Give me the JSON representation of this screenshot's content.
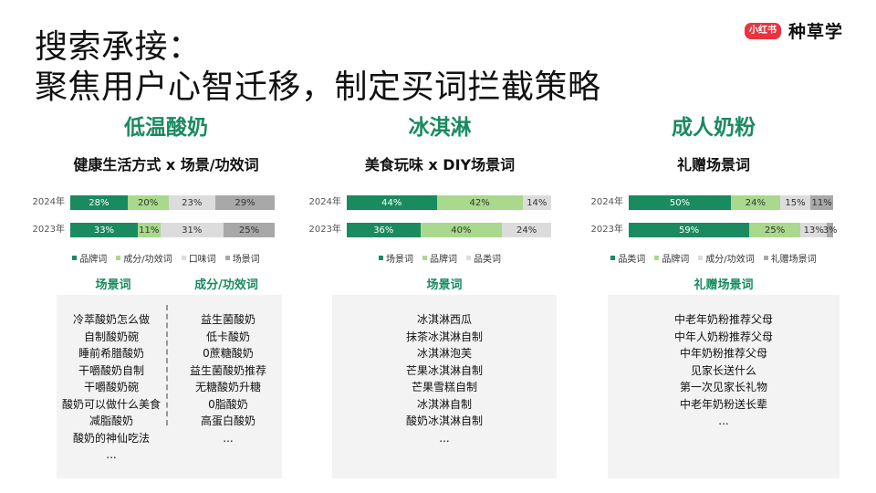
{
  "header": {
    "title_line1": "搜索承接：",
    "title_line2": "聚焦用户心智迁移，制定买词拦截策略",
    "logo_badge": "小红书",
    "logo_text": "种草学"
  },
  "colors": {
    "dark_green": "#1a8a5f",
    "light_green": "#a9d98c",
    "light_gray": "#dcdcdc",
    "mid_gray": "#a8a8a8"
  },
  "chart_data": [
    {
      "type": "bar",
      "stacked": true,
      "orientation": "horizontal",
      "title": "低温酸奶",
      "subtitle": "健康生活方式 x 场景/功效词",
      "categories": [
        "2024年",
        "2023年"
      ],
      "series": [
        {
          "name": "品牌词",
          "values": [
            28,
            33
          ],
          "labels": [
            "28%",
            "33%"
          ],
          "color": "#1a8a5f"
        },
        {
          "name": "成分/功效词",
          "values": [
            20,
            11
          ],
          "labels": [
            "20%",
            "11%"
          ],
          "color": "#a9d98c"
        },
        {
          "name": "口味词",
          "values": [
            23,
            31
          ],
          "labels": [
            "23%",
            "31%"
          ],
          "color": "#dcdcdc"
        },
        {
          "name": "场景词",
          "values": [
            29,
            25
          ],
          "labels": [
            "29%",
            "25%"
          ],
          "color": "#a8a8a8"
        }
      ],
      "legend": "bottom"
    },
    {
      "type": "bar",
      "stacked": true,
      "orientation": "horizontal",
      "title": "冰淇淋",
      "subtitle": "美食玩味 x DIY场景词",
      "categories": [
        "2024年",
        "2023年"
      ],
      "series": [
        {
          "name": "场景词",
          "values": [
            44,
            36
          ],
          "labels": [
            "44%",
            "36%"
          ],
          "color": "#1a8a5f"
        },
        {
          "name": "品牌词",
          "values": [
            42,
            40
          ],
          "labels": [
            "42%",
            "40%"
          ],
          "color": "#a9d98c"
        },
        {
          "name": "品类词",
          "values": [
            14,
            24
          ],
          "labels": [
            "14%",
            "24%"
          ],
          "color": "#dcdcdc"
        }
      ],
      "legend": "bottom"
    },
    {
      "type": "bar",
      "stacked": true,
      "orientation": "horizontal",
      "title": "成人奶粉",
      "subtitle": "礼赠场景词",
      "categories": [
        "2024年",
        "2023年"
      ],
      "series": [
        {
          "name": "品类词",
          "values": [
            50,
            59
          ],
          "labels": [
            "50%",
            "59%"
          ],
          "color": "#1a8a5f"
        },
        {
          "name": "品牌词",
          "values": [
            24,
            25
          ],
          "labels": [
            "24%",
            "25%"
          ],
          "color": "#a9d98c"
        },
        {
          "name": "成分/功效词",
          "values": [
            15,
            13
          ],
          "labels": [
            "15%",
            "13%"
          ],
          "color": "#dcdcdc"
        },
        {
          "name": "礼赠场景词",
          "values": [
            11,
            3
          ],
          "labels": [
            "11%",
            "3%"
          ],
          "color": "#a8a8a8"
        }
      ],
      "legend": "bottom"
    }
  ],
  "keywords": {
    "yogurt_scene": {
      "heading": "场景词",
      "items": [
        "冷萃酸奶怎么做",
        "自制酸奶碗",
        "睡前希腊酸奶",
        "干嚼酸奶自制",
        "干嚼酸奶碗",
        "酸奶可以做什么美食",
        "减脂酸奶",
        "酸奶的神仙吃法",
        "..."
      ]
    },
    "yogurt_function": {
      "heading": "成分/功效词",
      "items": [
        "益生菌酸奶",
        "低卡酸奶",
        "0蔗糖酸奶",
        "益生菌酸奶推荐",
        "无糖酸奶升糖",
        "0脂酸奶",
        "高蛋白酸奶",
        "..."
      ]
    },
    "icecream_scene": {
      "heading": "场景词",
      "items": [
        "冰淇淋西瓜",
        "抹茶冰淇淋自制",
        "冰淇淋泡芙",
        "芒果冰淇淋自制",
        "芒果雪糕自制",
        "冰淇淋自制",
        "酸奶冰淇淋自制",
        "..."
      ]
    },
    "milkpowder_gift": {
      "heading": "礼赠场景词",
      "items": [
        "中老年奶粉推荐父母",
        "中年人奶粉推荐父母",
        "中年奶粉推荐父母",
        "见家长送什么",
        "第一次见家长礼物",
        "中老年奶粉送长辈",
        "..."
      ]
    }
  }
}
